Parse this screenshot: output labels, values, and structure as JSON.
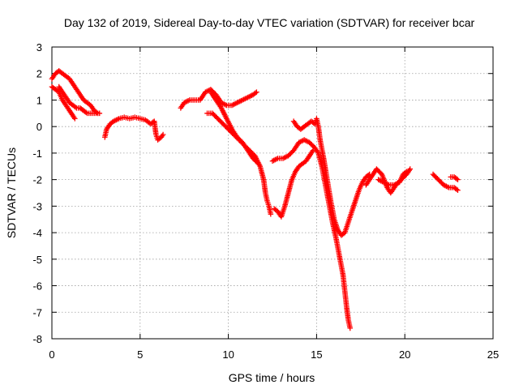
{
  "chart_data": {
    "type": "scatter",
    "title": "Day 132 of 2019, Sidereal Day-to-day VTEC variation (SDTVAR) for receiver bcar",
    "xlabel": "GPS time / hours",
    "ylabel": "SDTVAR / TECUs",
    "xlim": [
      0,
      25
    ],
    "ylim": [
      -8,
      3
    ],
    "xticks": [
      "0",
      "5",
      "10",
      "15",
      "20",
      "25"
    ],
    "yticks": [
      "3",
      "2",
      "1",
      "0",
      "-1",
      "-2",
      "-3",
      "-4",
      "-5",
      "-6",
      "-7",
      "-8"
    ],
    "grid": true,
    "marker": "+",
    "color": "#ff0000",
    "series": [
      {
        "name": "s1",
        "points": [
          [
            0.0,
            1.5
          ],
          [
            0.2,
            1.4
          ],
          [
            0.4,
            1.3
          ],
          [
            0.6,
            1.0
          ],
          [
            0.8,
            0.8
          ],
          [
            1.0,
            0.6
          ],
          [
            1.2,
            0.4
          ],
          [
            1.3,
            0.3
          ]
        ]
      },
      {
        "name": "s2",
        "points": [
          [
            0.0,
            1.8
          ],
          [
            0.2,
            2.0
          ],
          [
            0.4,
            2.1
          ],
          [
            0.6,
            2.0
          ],
          [
            0.8,
            1.9
          ],
          [
            1.0,
            1.8
          ],
          [
            1.2,
            1.6
          ],
          [
            1.4,
            1.4
          ],
          [
            1.6,
            1.2
          ],
          [
            1.8,
            1.0
          ],
          [
            2.0,
            0.9
          ],
          [
            2.2,
            0.8
          ],
          [
            2.4,
            0.6
          ],
          [
            2.6,
            0.5
          ]
        ]
      },
      {
        "name": "s3",
        "points": [
          [
            0.4,
            1.5
          ],
          [
            0.6,
            1.3
          ],
          [
            0.8,
            1.1
          ],
          [
            1.0,
            0.9
          ],
          [
            1.2,
            0.8
          ],
          [
            1.4,
            0.7
          ],
          [
            1.6,
            0.7
          ],
          [
            1.8,
            0.6
          ],
          [
            2.0,
            0.5
          ],
          [
            2.2,
            0.5
          ],
          [
            2.4,
            0.5
          ],
          [
            2.7,
            0.5
          ]
        ]
      },
      {
        "name": "s4",
        "points": [
          [
            3.0,
            -0.4
          ],
          [
            3.1,
            -0.1
          ],
          [
            3.3,
            0.1
          ],
          [
            3.5,
            0.2
          ],
          [
            3.8,
            0.3
          ],
          [
            4.1,
            0.35
          ],
          [
            4.4,
            0.3
          ],
          [
            4.7,
            0.35
          ],
          [
            5.0,
            0.3
          ],
          [
            5.3,
            0.25
          ],
          [
            5.6,
            0.1
          ],
          [
            5.8,
            0.2
          ],
          [
            5.9,
            -0.3
          ],
          [
            6.0,
            -0.5
          ],
          [
            6.2,
            -0.4
          ],
          [
            6.3,
            -0.3
          ]
        ]
      },
      {
        "name": "s5",
        "points": [
          [
            7.3,
            0.7
          ],
          [
            7.5,
            0.9
          ],
          [
            7.8,
            1.0
          ],
          [
            8.1,
            1.0
          ],
          [
            8.4,
            1.0
          ],
          [
            8.7,
            1.3
          ],
          [
            9.0,
            1.4
          ],
          [
            9.3,
            1.2
          ],
          [
            9.6,
            0.9
          ],
          [
            9.9,
            0.8
          ],
          [
            10.2,
            0.8
          ],
          [
            10.5,
            0.9
          ],
          [
            10.8,
            1.0
          ],
          [
            11.1,
            1.1
          ],
          [
            11.4,
            1.2
          ],
          [
            11.6,
            1.3
          ]
        ]
      },
      {
        "name": "s6",
        "points": [
          [
            8.8,
            0.5
          ],
          [
            9.1,
            0.5
          ],
          [
            9.4,
            0.3
          ],
          [
            9.7,
            0.1
          ],
          [
            10.0,
            -0.1
          ],
          [
            10.3,
            -0.3
          ],
          [
            10.6,
            -0.5
          ],
          [
            10.9,
            -0.7
          ],
          [
            11.2,
            -0.9
          ],
          [
            11.5,
            -1.1
          ],
          [
            11.8,
            -1.5
          ],
          [
            12.0,
            -2.0
          ],
          [
            12.1,
            -2.5
          ],
          [
            12.2,
            -2.8
          ],
          [
            12.3,
            -3.0
          ],
          [
            12.4,
            -3.3
          ]
        ]
      },
      {
        "name": "s7",
        "points": [
          [
            9.0,
            1.3
          ],
          [
            9.3,
            1.0
          ],
          [
            9.6,
            0.7
          ],
          [
            9.9,
            0.3
          ],
          [
            10.2,
            -0.1
          ],
          [
            10.5,
            -0.4
          ],
          [
            10.8,
            -0.6
          ],
          [
            11.1,
            -0.9
          ],
          [
            11.4,
            -1.2
          ],
          [
            11.7,
            -1.4
          ]
        ]
      },
      {
        "name": "s8",
        "points": [
          [
            12.6,
            -3.1
          ],
          [
            12.8,
            -3.2
          ],
          [
            13.0,
            -3.4
          ],
          [
            13.2,
            -3.0
          ],
          [
            13.4,
            -2.5
          ],
          [
            13.6,
            -2.0
          ],
          [
            13.8,
            -1.7
          ],
          [
            14.0,
            -1.5
          ],
          [
            14.2,
            -1.4
          ],
          [
            14.4,
            -1.3
          ],
          [
            14.6,
            -1.1
          ],
          [
            14.8,
            -0.9
          ]
        ]
      },
      {
        "name": "s9",
        "points": [
          [
            12.5,
            -1.3
          ],
          [
            12.8,
            -1.2
          ],
          [
            13.1,
            -1.2
          ],
          [
            13.4,
            -1.1
          ],
          [
            13.7,
            -0.9
          ],
          [
            14.0,
            -0.6
          ],
          [
            14.3,
            -0.5
          ],
          [
            14.6,
            -0.6
          ],
          [
            14.9,
            -0.8
          ],
          [
            15.1,
            -1.0
          ],
          [
            15.3,
            -1.5
          ],
          [
            15.5,
            -2.2
          ],
          [
            15.7,
            -2.9
          ],
          [
            15.9,
            -3.6
          ],
          [
            16.1,
            -4.2
          ],
          [
            16.3,
            -4.9
          ],
          [
            16.5,
            -5.6
          ],
          [
            16.6,
            -6.2
          ],
          [
            16.7,
            -6.8
          ],
          [
            16.8,
            -7.3
          ],
          [
            16.9,
            -7.6
          ]
        ]
      },
      {
        "name": "s10",
        "points": [
          [
            13.7,
            0.2
          ],
          [
            13.9,
            0.0
          ],
          [
            14.1,
            -0.1
          ],
          [
            14.3,
            0.0
          ],
          [
            14.5,
            0.1
          ],
          [
            14.7,
            0.2
          ],
          [
            14.9,
            0.1
          ],
          [
            15.0,
            0.3
          ],
          [
            15.1,
            0.0
          ],
          [
            15.2,
            -0.5
          ],
          [
            15.4,
            -1.2
          ],
          [
            15.6,
            -2.0
          ],
          [
            15.8,
            -2.8
          ],
          [
            16.0,
            -3.5
          ],
          [
            16.2,
            -3.9
          ],
          [
            16.4,
            -4.1
          ],
          [
            16.6,
            -4.0
          ],
          [
            16.8,
            -3.6
          ],
          [
            17.0,
            -3.2
          ],
          [
            17.2,
            -2.8
          ],
          [
            17.4,
            -2.4
          ],
          [
            17.6,
            -2.1
          ],
          [
            17.8,
            -1.9
          ],
          [
            18.0,
            -1.8
          ]
        ]
      },
      {
        "name": "s11",
        "points": [
          [
            17.8,
            -2.2
          ],
          [
            18.1,
            -1.9
          ],
          [
            18.4,
            -1.6
          ],
          [
            18.7,
            -1.8
          ],
          [
            19.0,
            -2.3
          ],
          [
            19.2,
            -2.5
          ],
          [
            19.5,
            -2.2
          ],
          [
            19.8,
            -2.0
          ],
          [
            20.1,
            -1.8
          ],
          [
            20.3,
            -1.6
          ]
        ]
      },
      {
        "name": "s12",
        "points": [
          [
            18.5,
            -2.0
          ],
          [
            18.8,
            -2.1
          ],
          [
            19.1,
            -2.2
          ],
          [
            19.4,
            -2.2
          ],
          [
            19.7,
            -2.1
          ],
          [
            19.9,
            -1.8
          ],
          [
            20.1,
            -1.7
          ]
        ]
      },
      {
        "name": "s13",
        "points": [
          [
            21.6,
            -1.8
          ],
          [
            21.9,
            -2.0
          ],
          [
            22.2,
            -2.2
          ],
          [
            22.5,
            -2.3
          ],
          [
            22.8,
            -2.3
          ],
          [
            23.0,
            -2.4
          ]
        ]
      },
      {
        "name": "s14",
        "points": [
          [
            22.6,
            -1.9
          ],
          [
            22.8,
            -1.9
          ],
          [
            23.0,
            -2.0
          ]
        ]
      }
    ]
  }
}
